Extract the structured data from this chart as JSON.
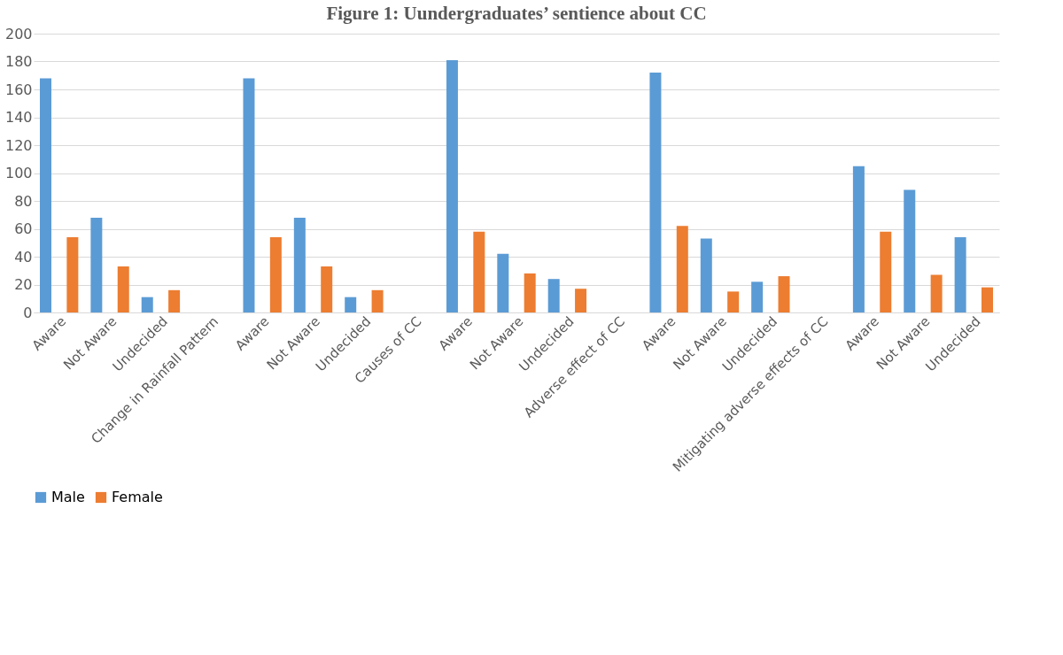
{
  "chart_data": {
    "type": "bar",
    "title": "Figure 1: Uundergraduates’ sentience about CC",
    "categories": [
      "Aware",
      "Not Aware",
      "Undecided",
      "Change in Rainfall Pattern",
      "Aware",
      "Not Aware",
      "Undecided",
      "Causes of CC",
      "Aware",
      "Not Aware",
      "Undecided",
      "Adverse effect of CC",
      "Aware",
      "Not Aware",
      "Undecided",
      "Mitigating adverse effects of CC",
      "Aware",
      "Not Aware",
      "Undecided"
    ],
    "series": [
      {
        "name": "Male",
        "color": "#5b9bd5",
        "values": [
          168,
          68,
          11,
          null,
          168,
          68,
          11,
          null,
          181,
          42,
          24,
          null,
          172,
          53,
          22,
          null,
          105,
          88,
          54
        ]
      },
      {
        "name": "Female",
        "color": "#ed7d31",
        "values": [
          54,
          33,
          16,
          null,
          54,
          33,
          16,
          null,
          58,
          28,
          17,
          null,
          62,
          15,
          26,
          null,
          58,
          27,
          18
        ]
      }
    ],
    "ylim": [
      0,
      200
    ],
    "yticks": [
      0,
      20,
      40,
      60,
      80,
      100,
      120,
      140,
      160,
      180,
      200
    ],
    "grid": "y",
    "legend": "bottom"
  }
}
